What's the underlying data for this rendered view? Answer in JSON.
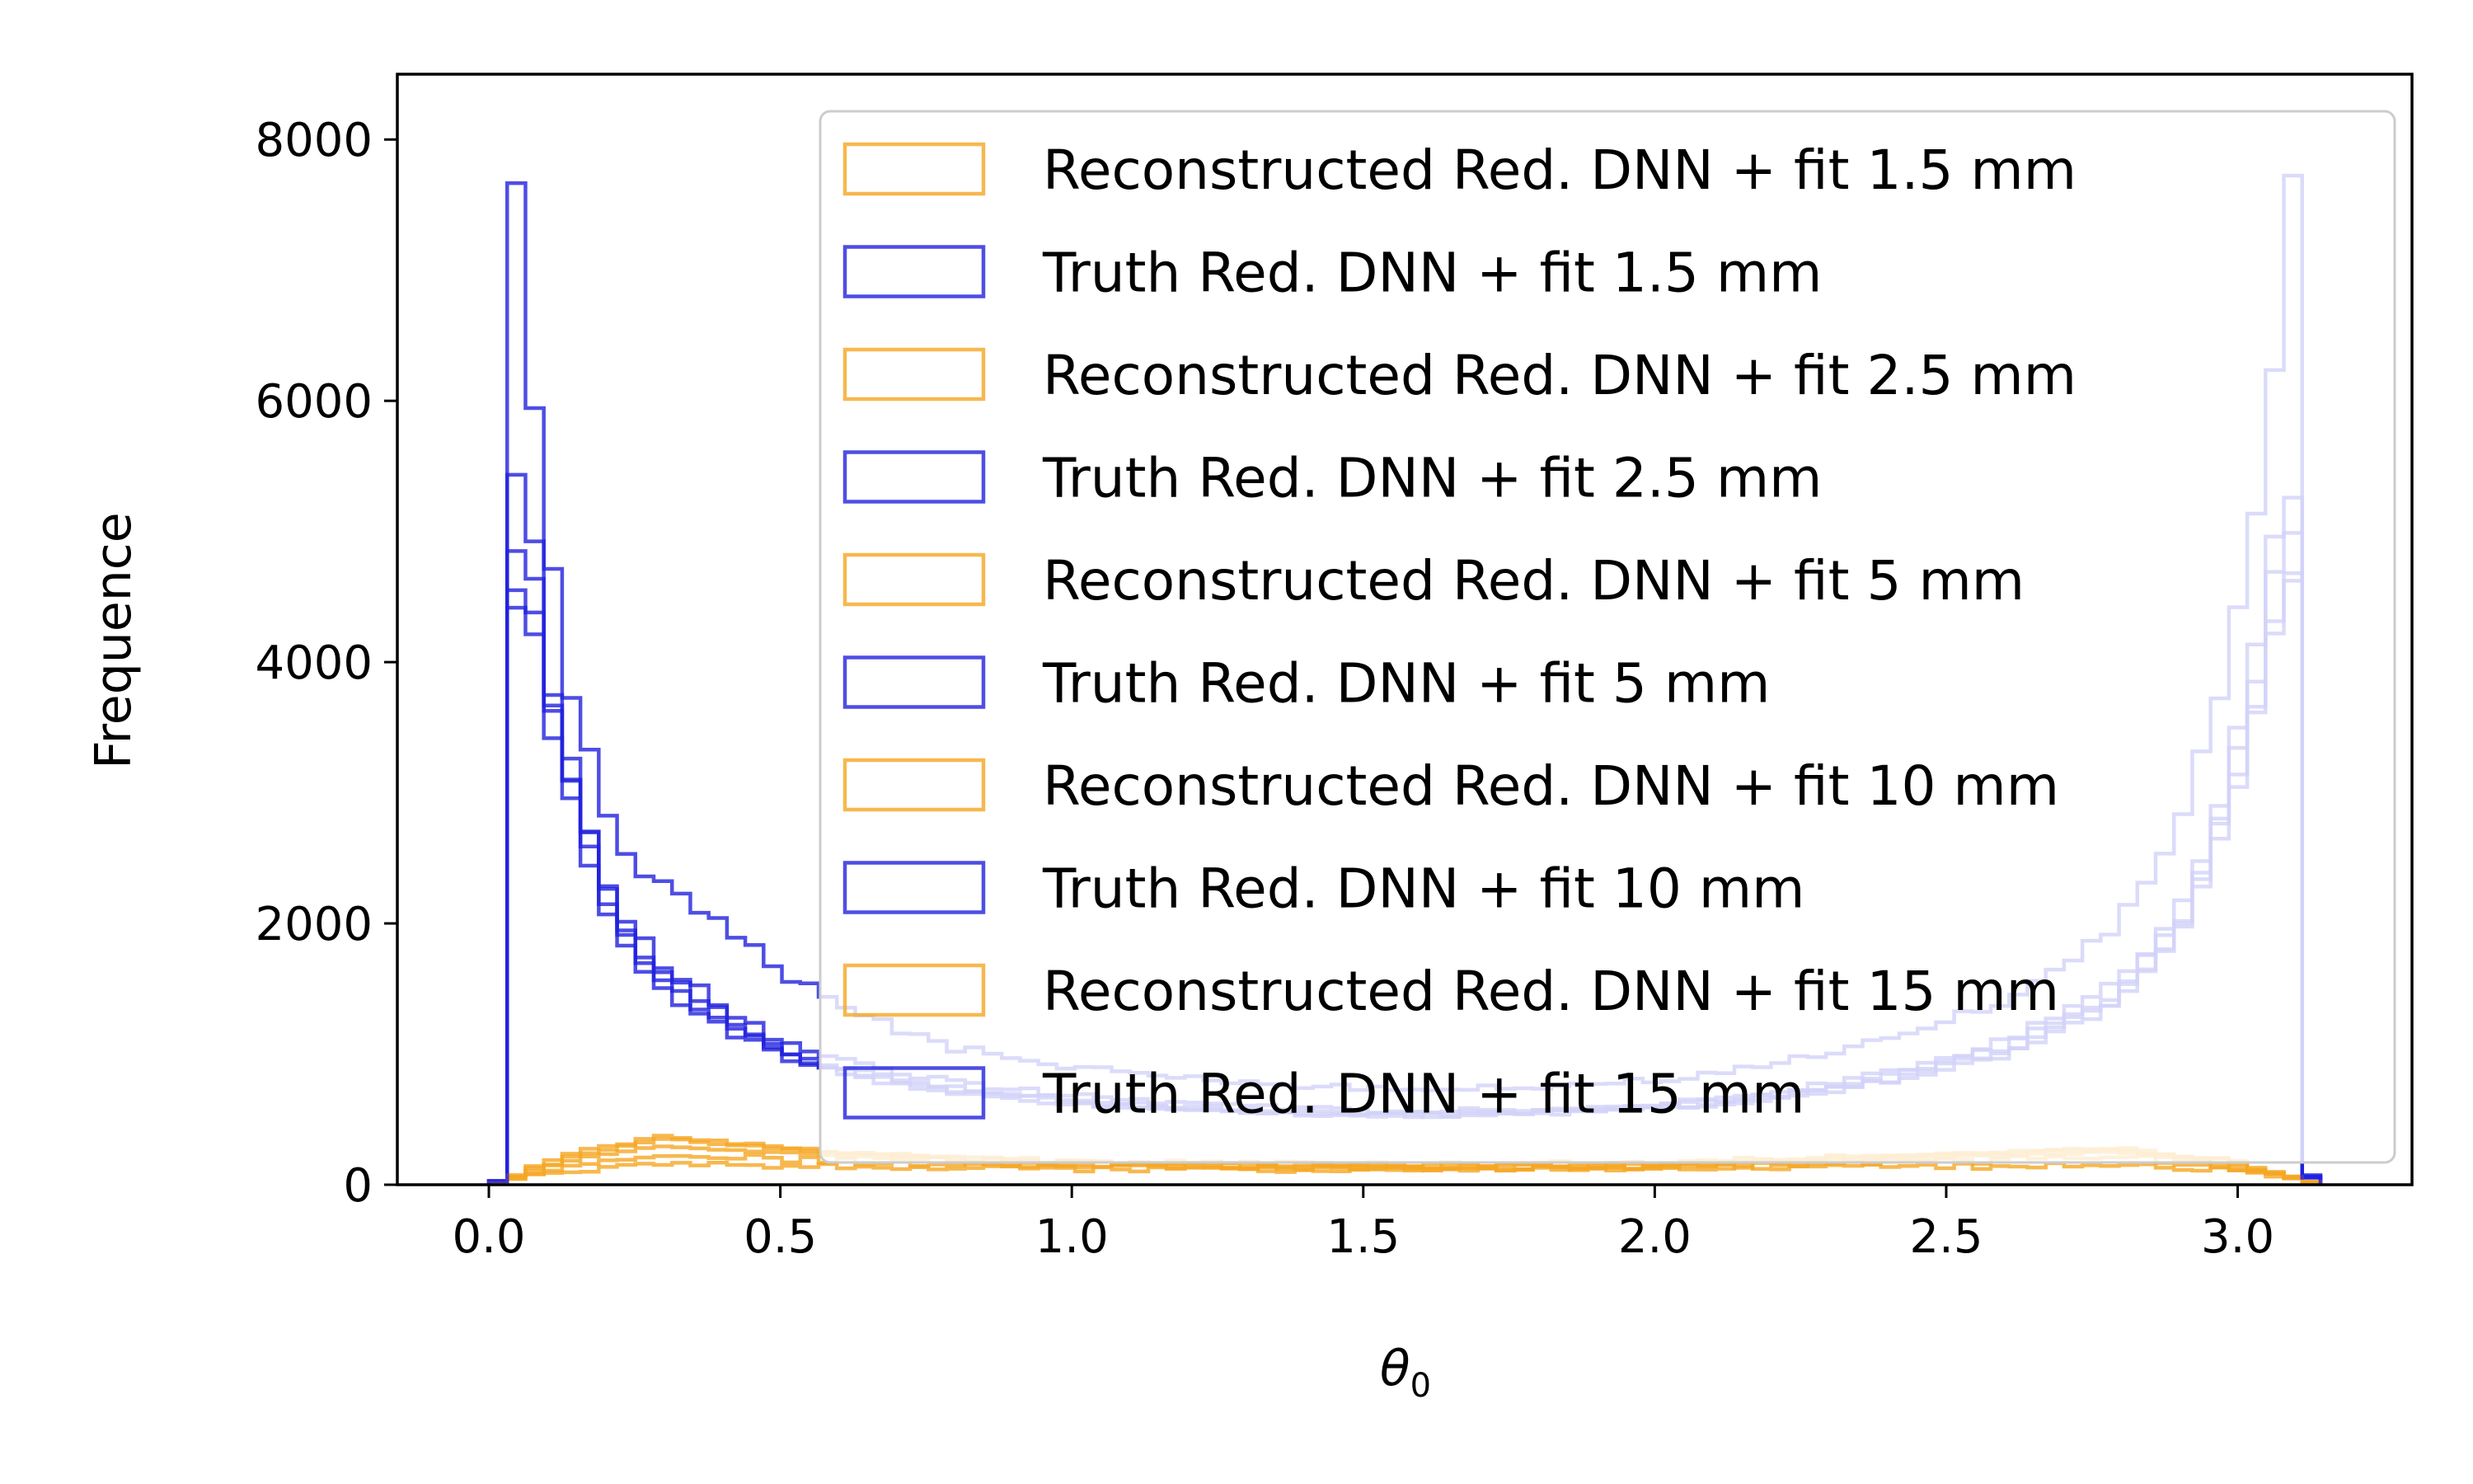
{
  "chart_data": {
    "type": "histogram-step",
    "xlabel": "θ",
    "xlabel_sub": "0",
    "ylabel": "Frequence",
    "xlim": [
      -0.157,
      3.299
    ],
    "ylim": [
      0,
      8500
    ],
    "xticks": [
      0.0,
      0.5,
      1.0,
      1.5,
      2.0,
      2.5,
      3.0
    ],
    "xtick_labels": [
      "0.0",
      "0.5",
      "1.0",
      "1.5",
      "2.0",
      "2.5",
      "3.0"
    ],
    "yticks": [
      0,
      2000,
      4000,
      6000,
      8000
    ],
    "ytick_labels": [
      "0",
      "2000",
      "4000",
      "6000",
      "8000"
    ],
    "grid": false,
    "legend_position": "upper-right",
    "colors": {
      "reconstructed": "#f5a623",
      "truth": "#2222dd"
    },
    "bins": {
      "start": 0.0,
      "width": 0.03142,
      "count": 100
    },
    "series": [
      {
        "name": "Reconstructed Red. DNN + fit 1.5 mm",
        "group": "reconstructed",
        "anchors": [
          [
            0.0,
            0
          ],
          [
            0.03,
            30
          ],
          [
            0.06,
            60
          ],
          [
            0.15,
            110
          ],
          [
            0.3,
            150
          ],
          [
            0.6,
            140
          ],
          [
            1.0,
            120
          ],
          [
            1.5,
            110
          ],
          [
            2.0,
            120
          ],
          [
            2.5,
            140
          ],
          [
            2.8,
            150
          ],
          [
            3.0,
            110
          ],
          [
            3.1,
            50
          ],
          [
            3.14,
            0
          ]
        ]
      },
      {
        "name": "Truth Red. DNN + fit 1.5 mm",
        "group": "truth",
        "anchors": [
          [
            0.0,
            0
          ],
          [
            0.03,
            50
          ],
          [
            0.04,
            8100
          ],
          [
            0.07,
            6350
          ],
          [
            0.1,
            4850
          ],
          [
            0.15,
            3600
          ],
          [
            0.2,
            2850
          ],
          [
            0.25,
            2500
          ],
          [
            0.3,
            2250
          ],
          [
            0.4,
            2000
          ],
          [
            0.5,
            1650
          ],
          [
            0.6,
            1350
          ],
          [
            0.8,
            1050
          ],
          [
            1.0,
            900
          ],
          [
            1.3,
            780
          ],
          [
            1.57,
            730
          ],
          [
            1.8,
            750
          ],
          [
            2.0,
            800
          ],
          [
            2.2,
            920
          ],
          [
            2.4,
            1100
          ],
          [
            2.6,
            1400
          ],
          [
            2.8,
            2000
          ],
          [
            2.9,
            2700
          ],
          [
            2.98,
            3900
          ],
          [
            3.04,
            5200
          ],
          [
            3.07,
            6500
          ],
          [
            3.1,
            7800
          ],
          [
            3.1,
            80
          ],
          [
            3.14,
            60
          ]
        ]
      },
      {
        "name": "Reconstructed Red. DNN + fit 2.5 mm",
        "group": "reconstructed",
        "anchors": [
          [
            0.0,
            0
          ],
          [
            0.03,
            30
          ],
          [
            0.06,
            70
          ],
          [
            0.15,
            150
          ],
          [
            0.3,
            220
          ],
          [
            0.6,
            180
          ],
          [
            1.0,
            140
          ],
          [
            1.5,
            120
          ],
          [
            2.0,
            130
          ],
          [
            2.5,
            180
          ],
          [
            2.8,
            210
          ],
          [
            3.0,
            130
          ],
          [
            3.1,
            50
          ],
          [
            3.14,
            0
          ]
        ]
      },
      {
        "name": "Truth Red. DNN + fit 2.5 mm",
        "group": "truth",
        "anchors": [
          [
            0.0,
            0
          ],
          [
            0.03,
            50
          ],
          [
            0.04,
            5400
          ],
          [
            0.07,
            5200
          ],
          [
            0.1,
            4000
          ],
          [
            0.15,
            3100
          ],
          [
            0.2,
            2350
          ],
          [
            0.25,
            1950
          ],
          [
            0.3,
            1700
          ],
          [
            0.4,
            1350
          ],
          [
            0.5,
            1100
          ],
          [
            0.6,
            950
          ],
          [
            0.8,
            780
          ],
          [
            1.0,
            680
          ],
          [
            1.3,
            600
          ],
          [
            1.57,
            560
          ],
          [
            1.8,
            580
          ],
          [
            2.0,
            620
          ],
          [
            2.2,
            700
          ],
          [
            2.4,
            850
          ],
          [
            2.6,
            1100
          ],
          [
            2.8,
            1550
          ],
          [
            2.9,
            2100
          ],
          [
            2.98,
            3000
          ],
          [
            3.04,
            4200
          ],
          [
            3.07,
            5000
          ],
          [
            3.1,
            5200
          ],
          [
            3.1,
            70
          ],
          [
            3.14,
            50
          ]
        ]
      },
      {
        "name": "Reconstructed Red. DNN + fit 5 mm",
        "group": "reconstructed",
        "anchors": [
          [
            0.0,
            0
          ],
          [
            0.03,
            30
          ],
          [
            0.06,
            80
          ],
          [
            0.15,
            200
          ],
          [
            0.3,
            300
          ],
          [
            0.6,
            220
          ],
          [
            1.0,
            160
          ],
          [
            1.5,
            130
          ],
          [
            2.0,
            140
          ],
          [
            2.5,
            210
          ],
          [
            2.8,
            250
          ],
          [
            3.0,
            150
          ],
          [
            3.1,
            60
          ],
          [
            3.14,
            0
          ]
        ]
      },
      {
        "name": "Truth Red. DNN + fit 5 mm",
        "group": "truth",
        "anchors": [
          [
            0.0,
            0
          ],
          [
            0.03,
            50
          ],
          [
            0.04,
            5000
          ],
          [
            0.07,
            4950
          ],
          [
            0.1,
            3900
          ],
          [
            0.15,
            3000
          ],
          [
            0.2,
            2250
          ],
          [
            0.25,
            1850
          ],
          [
            0.3,
            1600
          ],
          [
            0.4,
            1300
          ],
          [
            0.5,
            1050
          ],
          [
            0.6,
            900
          ],
          [
            0.8,
            740
          ],
          [
            1.0,
            650
          ],
          [
            1.3,
            570
          ],
          [
            1.57,
            540
          ],
          [
            1.8,
            560
          ],
          [
            2.0,
            600
          ],
          [
            2.2,
            680
          ],
          [
            2.4,
            820
          ],
          [
            2.6,
            1050
          ],
          [
            2.8,
            1500
          ],
          [
            2.9,
            2000
          ],
          [
            2.98,
            2900
          ],
          [
            3.04,
            4000
          ],
          [
            3.07,
            4800
          ],
          [
            3.1,
            5000
          ],
          [
            3.1,
            70
          ],
          [
            3.14,
            50
          ]
        ]
      },
      {
        "name": "Reconstructed Red. DNN + fit 10 mm",
        "group": "reconstructed",
        "anchors": [
          [
            0.0,
            0
          ],
          [
            0.03,
            30
          ],
          [
            0.06,
            90
          ],
          [
            0.15,
            230
          ],
          [
            0.3,
            350
          ],
          [
            0.6,
            240
          ],
          [
            1.0,
            170
          ],
          [
            1.5,
            140
          ],
          [
            2.0,
            150
          ],
          [
            2.5,
            230
          ],
          [
            2.8,
            270
          ],
          [
            3.0,
            160
          ],
          [
            3.1,
            60
          ],
          [
            3.14,
            0
          ]
        ]
      },
      {
        "name": "Truth Red. DNN + fit 10 mm",
        "group": "truth",
        "anchors": [
          [
            0.0,
            0
          ],
          [
            0.03,
            50
          ],
          [
            0.04,
            4700
          ],
          [
            0.07,
            4600
          ],
          [
            0.1,
            3700
          ],
          [
            0.15,
            2900
          ],
          [
            0.2,
            2150
          ],
          [
            0.25,
            1780
          ],
          [
            0.3,
            1550
          ],
          [
            0.4,
            1250
          ],
          [
            0.5,
            1000
          ],
          [
            0.6,
            870
          ],
          [
            0.8,
            720
          ],
          [
            1.0,
            630
          ],
          [
            1.3,
            560
          ],
          [
            1.57,
            530
          ],
          [
            1.8,
            550
          ],
          [
            2.0,
            590
          ],
          [
            2.2,
            660
          ],
          [
            2.4,
            800
          ],
          [
            2.6,
            1020
          ],
          [
            2.8,
            1450
          ],
          [
            2.9,
            1950
          ],
          [
            2.98,
            2800
          ],
          [
            3.04,
            3800
          ],
          [
            3.07,
            4500
          ],
          [
            3.1,
            4700
          ],
          [
            3.1,
            70
          ],
          [
            3.14,
            50
          ]
        ]
      },
      {
        "name": "Reconstructed Red. DNN + fit 15 mm",
        "group": "reconstructed",
        "anchors": [
          [
            0.0,
            0
          ],
          [
            0.03,
            30
          ],
          [
            0.06,
            100
          ],
          [
            0.15,
            250
          ],
          [
            0.3,
            370
          ],
          [
            0.6,
            250
          ],
          [
            1.0,
            180
          ],
          [
            1.5,
            150
          ],
          [
            2.0,
            160
          ],
          [
            2.5,
            240
          ],
          [
            2.8,
            280
          ],
          [
            3.0,
            170
          ],
          [
            3.1,
            60
          ],
          [
            3.14,
            0
          ]
        ]
      },
      {
        "name": "Truth Red. DNN + fit 15 mm",
        "group": "truth",
        "anchors": [
          [
            0.0,
            0
          ],
          [
            0.03,
            50
          ],
          [
            0.04,
            4600
          ],
          [
            0.07,
            4300
          ],
          [
            0.1,
            3600
          ],
          [
            0.15,
            2800
          ],
          [
            0.2,
            2100
          ],
          [
            0.25,
            1750
          ],
          [
            0.3,
            1500
          ],
          [
            0.4,
            1200
          ],
          [
            0.5,
            980
          ],
          [
            0.6,
            850
          ],
          [
            0.8,
            700
          ],
          [
            1.0,
            620
          ],
          [
            1.3,
            550
          ],
          [
            1.57,
            520
          ],
          [
            1.8,
            540
          ],
          [
            2.0,
            580
          ],
          [
            2.2,
            650
          ],
          [
            2.4,
            790
          ],
          [
            2.6,
            1000
          ],
          [
            2.8,
            1400
          ],
          [
            2.9,
            1900
          ],
          [
            2.98,
            2700
          ],
          [
            3.04,
            3700
          ],
          [
            3.07,
            4400
          ],
          [
            3.1,
            4600
          ],
          [
            3.1,
            70
          ],
          [
            3.14,
            50
          ]
        ]
      }
    ]
  }
}
